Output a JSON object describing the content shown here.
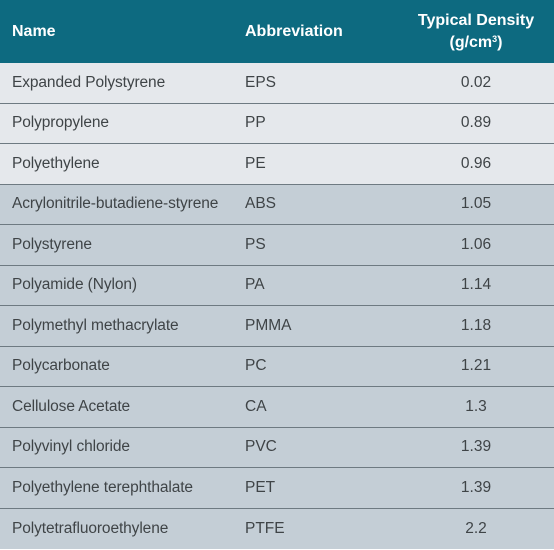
{
  "header": {
    "name": "Name",
    "abbreviation": "Abbreviation",
    "density_line1": "Typical Density",
    "density_line2": "(g/cm",
    "density_sup": "3",
    "density_close": ")"
  },
  "colors": {
    "header_bg": "#0d6a80",
    "light_row": "#e5e8ec",
    "dark_row": "#c4ced6"
  },
  "rows": [
    {
      "name": "Expanded Polystyrene",
      "abbr": "EPS",
      "density": "0.02"
    },
    {
      "name": "Polypropylene",
      "abbr": "PP",
      "density": "0.89"
    },
    {
      "name": "Polyethylene",
      "abbr": "PE",
      "density": "0.96"
    },
    {
      "name": "Acrylonitrile-butadiene-styrene",
      "abbr": "ABS",
      "density": "1.05"
    },
    {
      "name": "Polystyrene",
      "abbr": "PS",
      "density": "1.06"
    },
    {
      "name": "Polyamide (Nylon)",
      "abbr": "PA",
      "density": "1.14"
    },
    {
      "name": "Polymethyl methacrylate",
      "abbr": "PMMA",
      "density": "1.18"
    },
    {
      "name": "Polycarbonate",
      "abbr": "PC",
      "density": "1.21"
    },
    {
      "name": "Cellulose Acetate",
      "abbr": "CA",
      "density": "1.3"
    },
    {
      "name": "Polyvinyl chloride",
      "abbr": "PVC",
      "density": "1.39"
    },
    {
      "name": "Polyethylene terephthalate",
      "abbr": "PET",
      "density": "1.39"
    },
    {
      "name": "Polytetrafluoroethylene",
      "abbr": "PTFE",
      "density": "2.2"
    }
  ]
}
